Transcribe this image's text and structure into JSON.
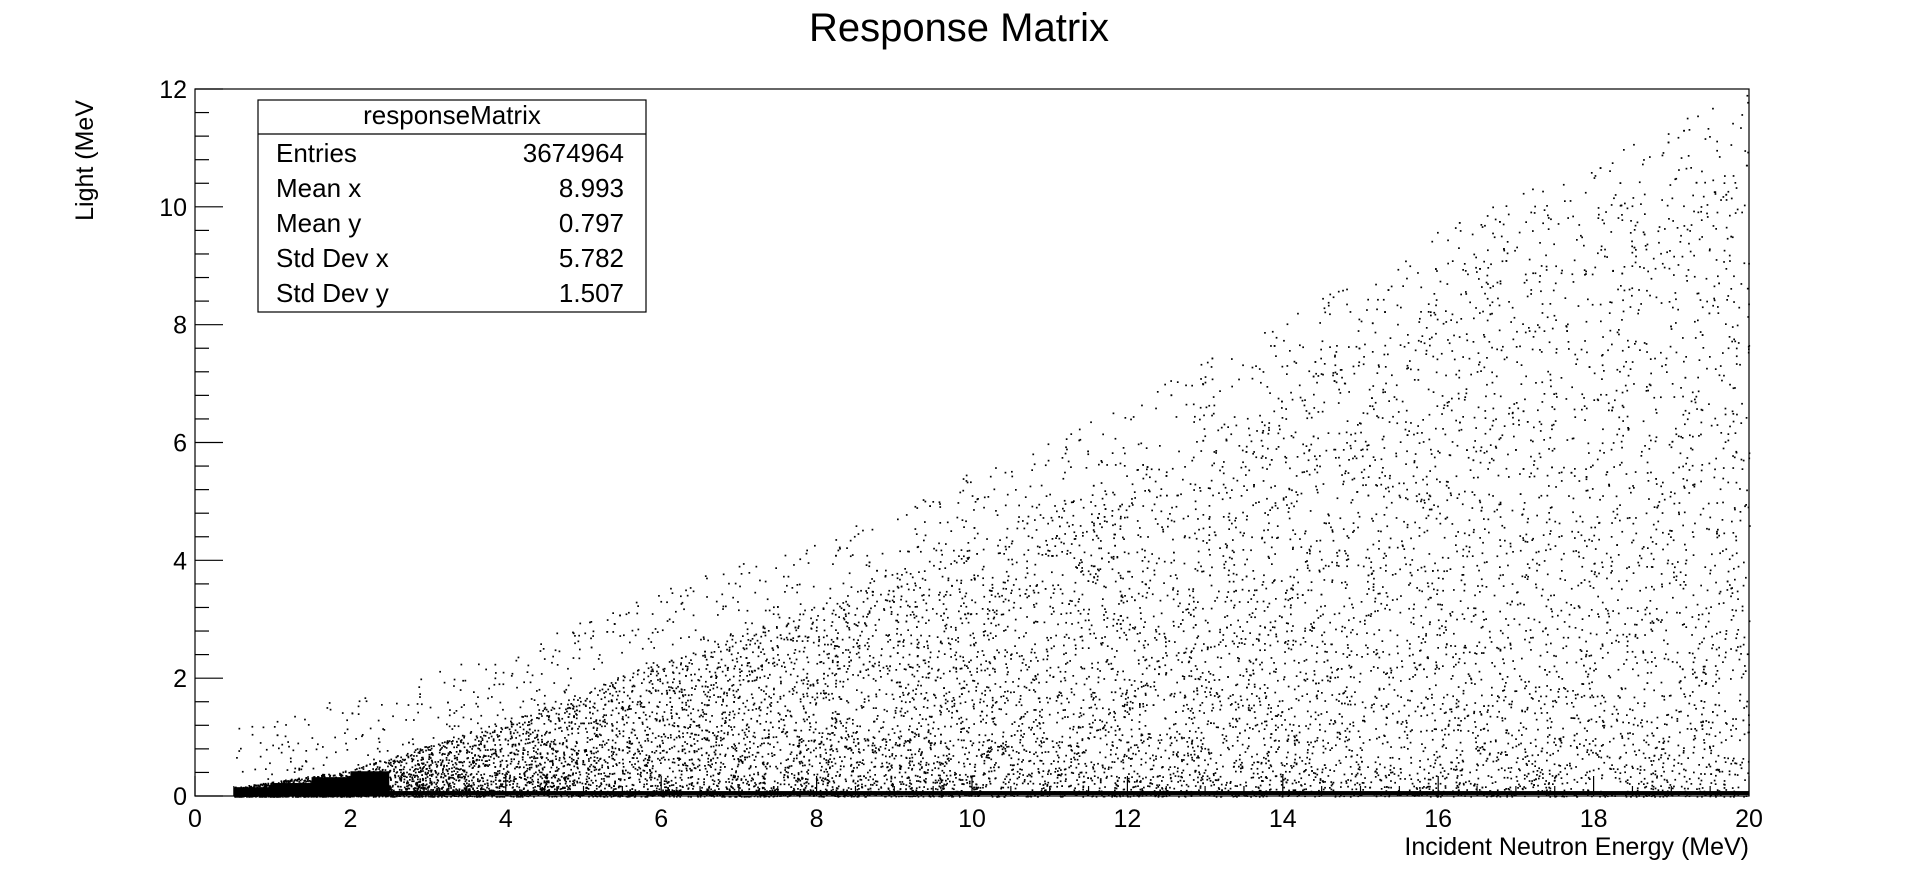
{
  "chart_data": {
    "type": "scatter",
    "title": "Response Matrix",
    "xlabel": "Incident Neutron Energy (MeV)",
    "ylabel": "Light (MeV",
    "xlim": [
      0,
      20
    ],
    "ylim": [
      0,
      12
    ],
    "x_ticks": [
      "0",
      "2",
      "4",
      "6",
      "8",
      "10",
      "12",
      "14",
      "16",
      "18",
      "20"
    ],
    "y_ticks": [
      "0",
      "2",
      "4",
      "6",
      "8",
      "10",
      "12"
    ],
    "grid": false,
    "legend": "none",
    "stats_box": {
      "name": "responseMatrix",
      "rows": [
        {
          "label": "Entries",
          "value": "3674964"
        },
        {
          "label": "Mean x",
          "value": "8.993"
        },
        {
          "label": "Mean y",
          "value": "0.797"
        },
        {
          "label": "Std Dev x",
          "value": "5.782"
        },
        {
          "label": "Std Dev y",
          "value": "1.507"
        }
      ]
    },
    "distribution": {
      "x_min": 0.5,
      "x_max": 20,
      "upper_edge": [
        [
          0.5,
          0.15
        ],
        [
          2,
          0.45
        ],
        [
          4,
          1.3
        ],
        [
          6,
          2.3
        ],
        [
          8,
          3.2
        ],
        [
          10,
          4.3
        ],
        [
          12,
          5.5
        ],
        [
          14,
          6.9
        ],
        [
          16,
          8.4
        ],
        [
          18,
          9.6
        ],
        [
          20,
          10.8
        ]
      ],
      "band_y": 0.05
    },
    "colors": {
      "marker": "#000000",
      "background": "#ffffff"
    }
  }
}
